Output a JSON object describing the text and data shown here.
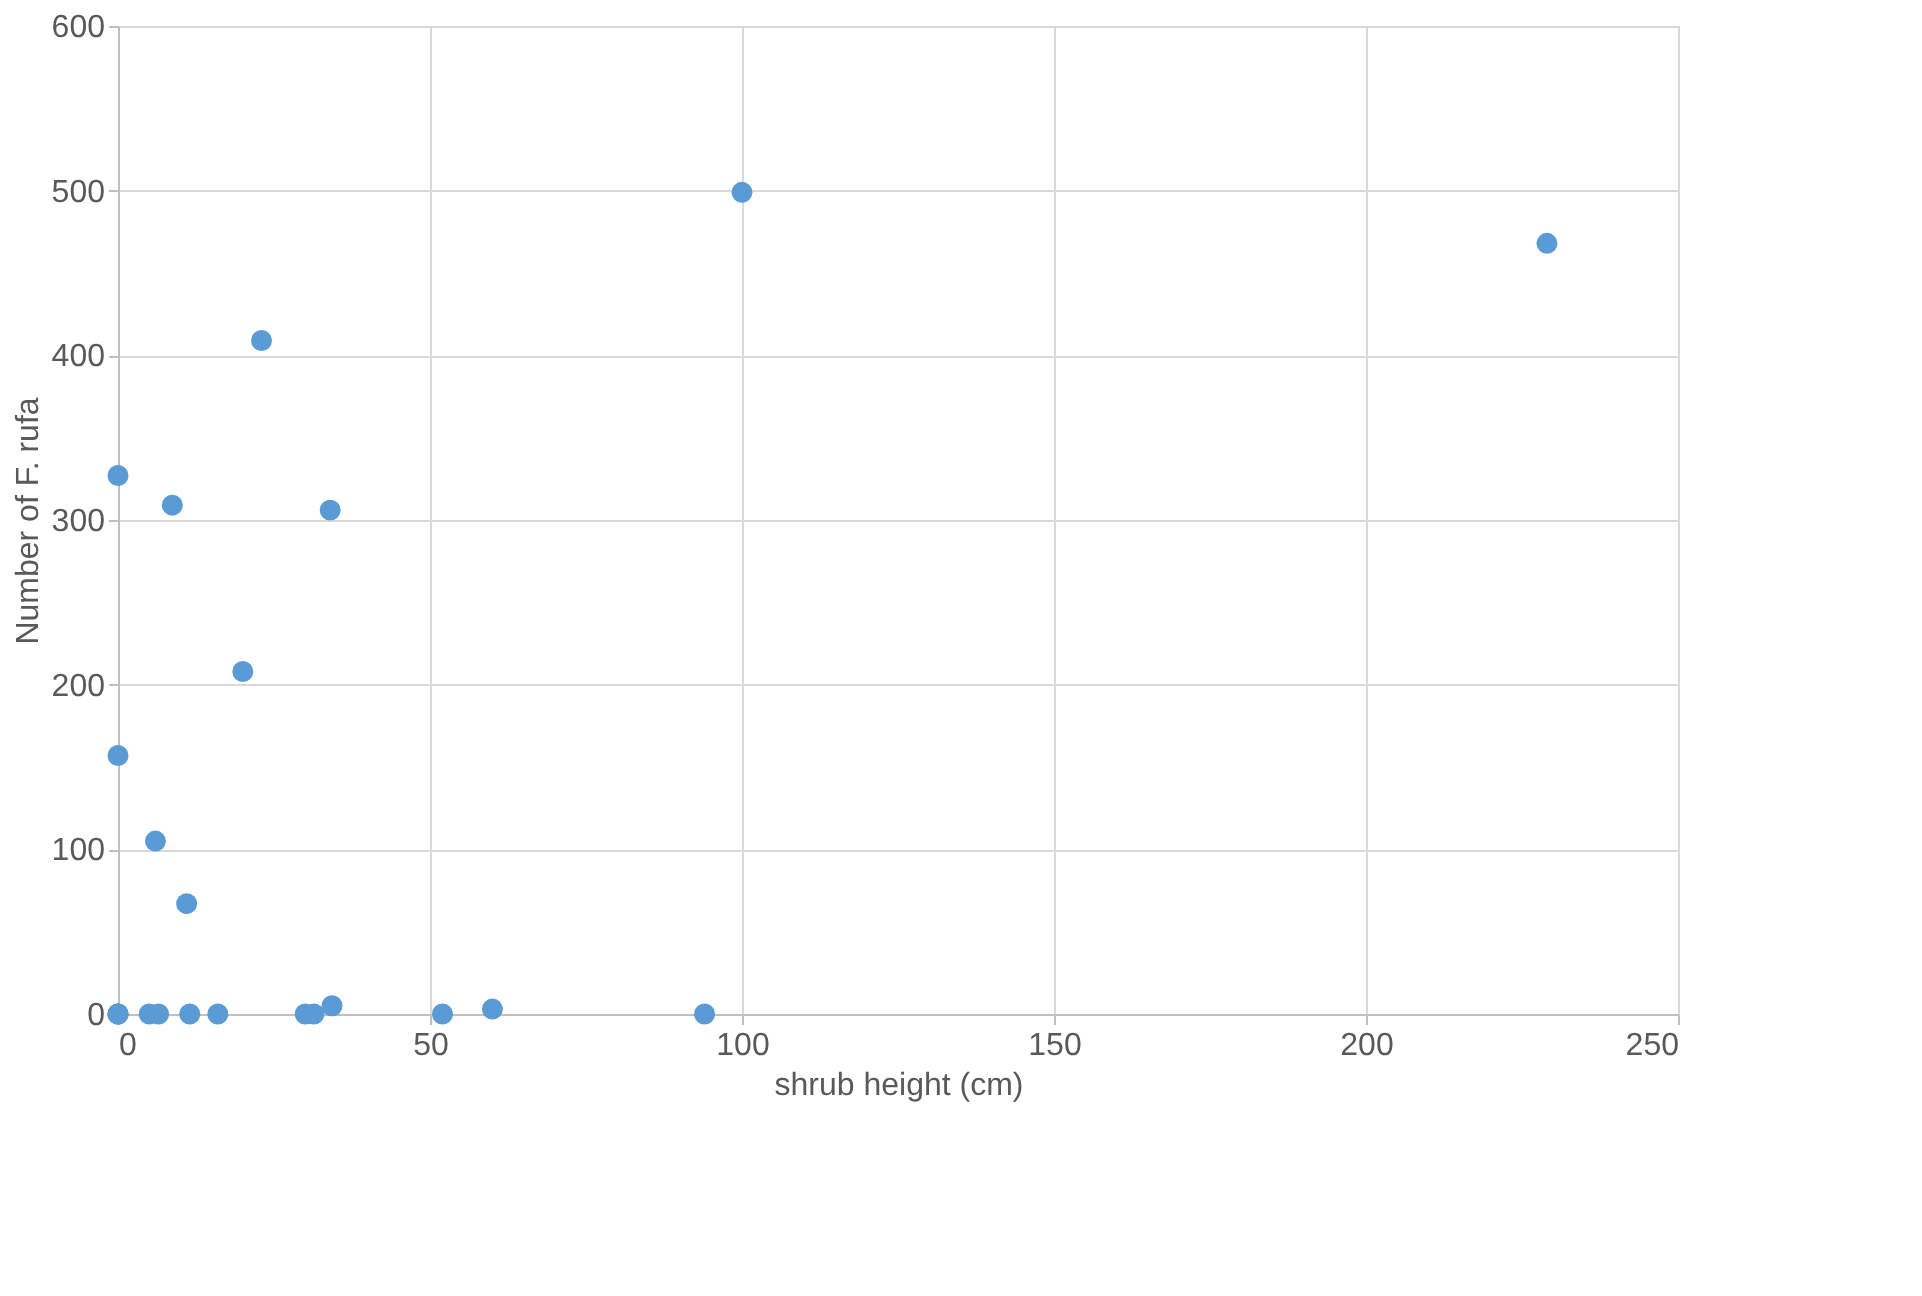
{
  "chart_data": {
    "type": "scatter",
    "xlabel": "shrub height (cm)",
    "ylabel": "Number of F. rufa",
    "x": [
      0,
      0,
      0,
      5,
      6.5,
      11.5,
      16,
      30,
      31.4,
      34.3,
      52,
      60,
      94,
      0,
      0,
      8.7,
      23,
      34,
      20,
      6,
      11,
      100,
      229
    ],
    "values": [
      0,
      0,
      0,
      0,
      0,
      0,
      0,
      0,
      0,
      5,
      0,
      3,
      0,
      327,
      157,
      309,
      409,
      306,
      208,
      105,
      67,
      499,
      468
    ],
    "color": "#5b9bd5",
    "marker": "circle",
    "grid": true,
    "xlim": [
      0,
      250
    ],
    "xticks": [
      0,
      50,
      100,
      150,
      200,
      250
    ],
    "ylim": [
      0,
      600
    ],
    "yticks": [
      0,
      100,
      200,
      300,
      400,
      500,
      600
    ]
  }
}
